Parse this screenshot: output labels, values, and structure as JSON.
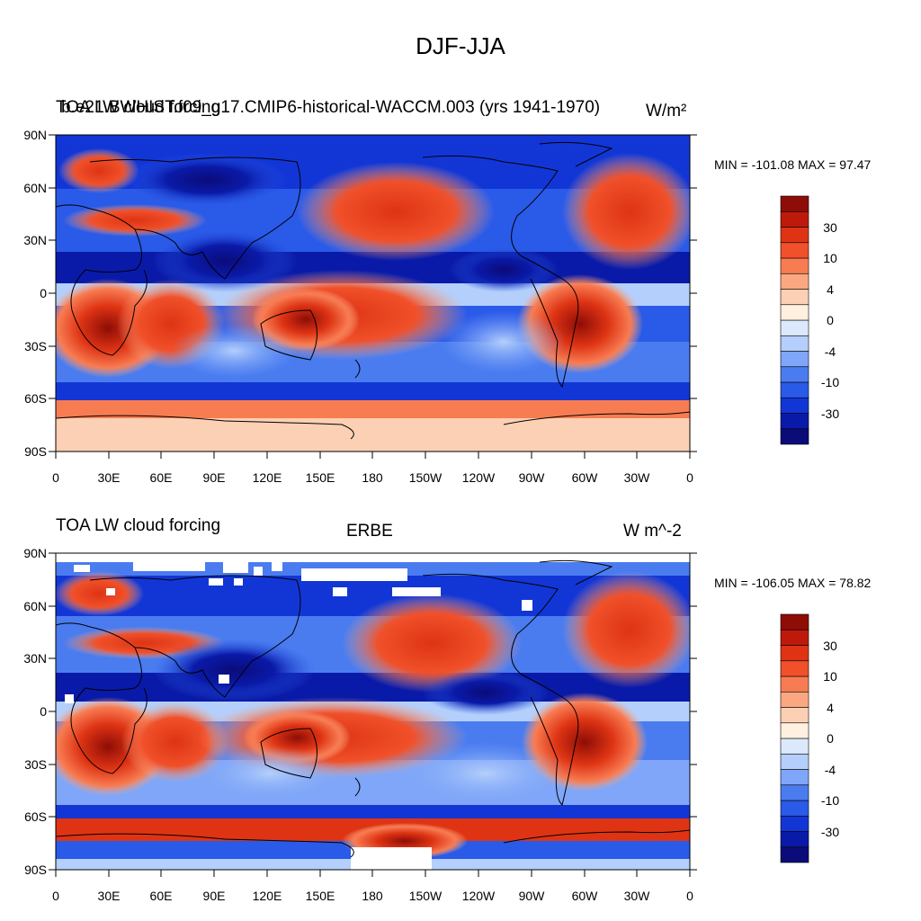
{
  "title": "DJF-JJA",
  "colorbar": {
    "colors": [
      "#0b0b7a",
      "#0a1aa8",
      "#1236d6",
      "#2a5ae8",
      "#4a7cf0",
      "#7fa6f8",
      "#b4cffb",
      "#dce9fd",
      "#fff0e0",
      "#fcd0b4",
      "#fba882",
      "#f87c52",
      "#f0502a",
      "#de3414",
      "#be1a0c",
      "#8e0d06"
    ],
    "labels": [
      "-30",
      "-10",
      "-4",
      "0",
      "4",
      "10",
      "30"
    ]
  },
  "axes": {
    "lat_labels": [
      "90N",
      "60N",
      "30N",
      "0",
      "30S",
      "60S",
      "90S"
    ],
    "lon_labels": [
      "0",
      "30E",
      "60E",
      "90E",
      "120E",
      "150E",
      "180",
      "150W",
      "120W",
      "90W",
      "60W",
      "30W",
      "0"
    ]
  },
  "panels": [
    {
      "left_title": "TOA LW cloud forcing",
      "center_title": "b.e21.BWHIST.f09_g17.CMIP6-historical-WACCM.003 (yrs 1941-1970)",
      "right_title": "W/m²",
      "minmax": "MIN = -101.08 MAX =  97.47"
    },
    {
      "left_title": "TOA LW cloud forcing",
      "center_title": "ERBE",
      "right_title": "W m^-2",
      "minmax": "MIN = -106.05 MAX =  78.82"
    }
  ]
}
